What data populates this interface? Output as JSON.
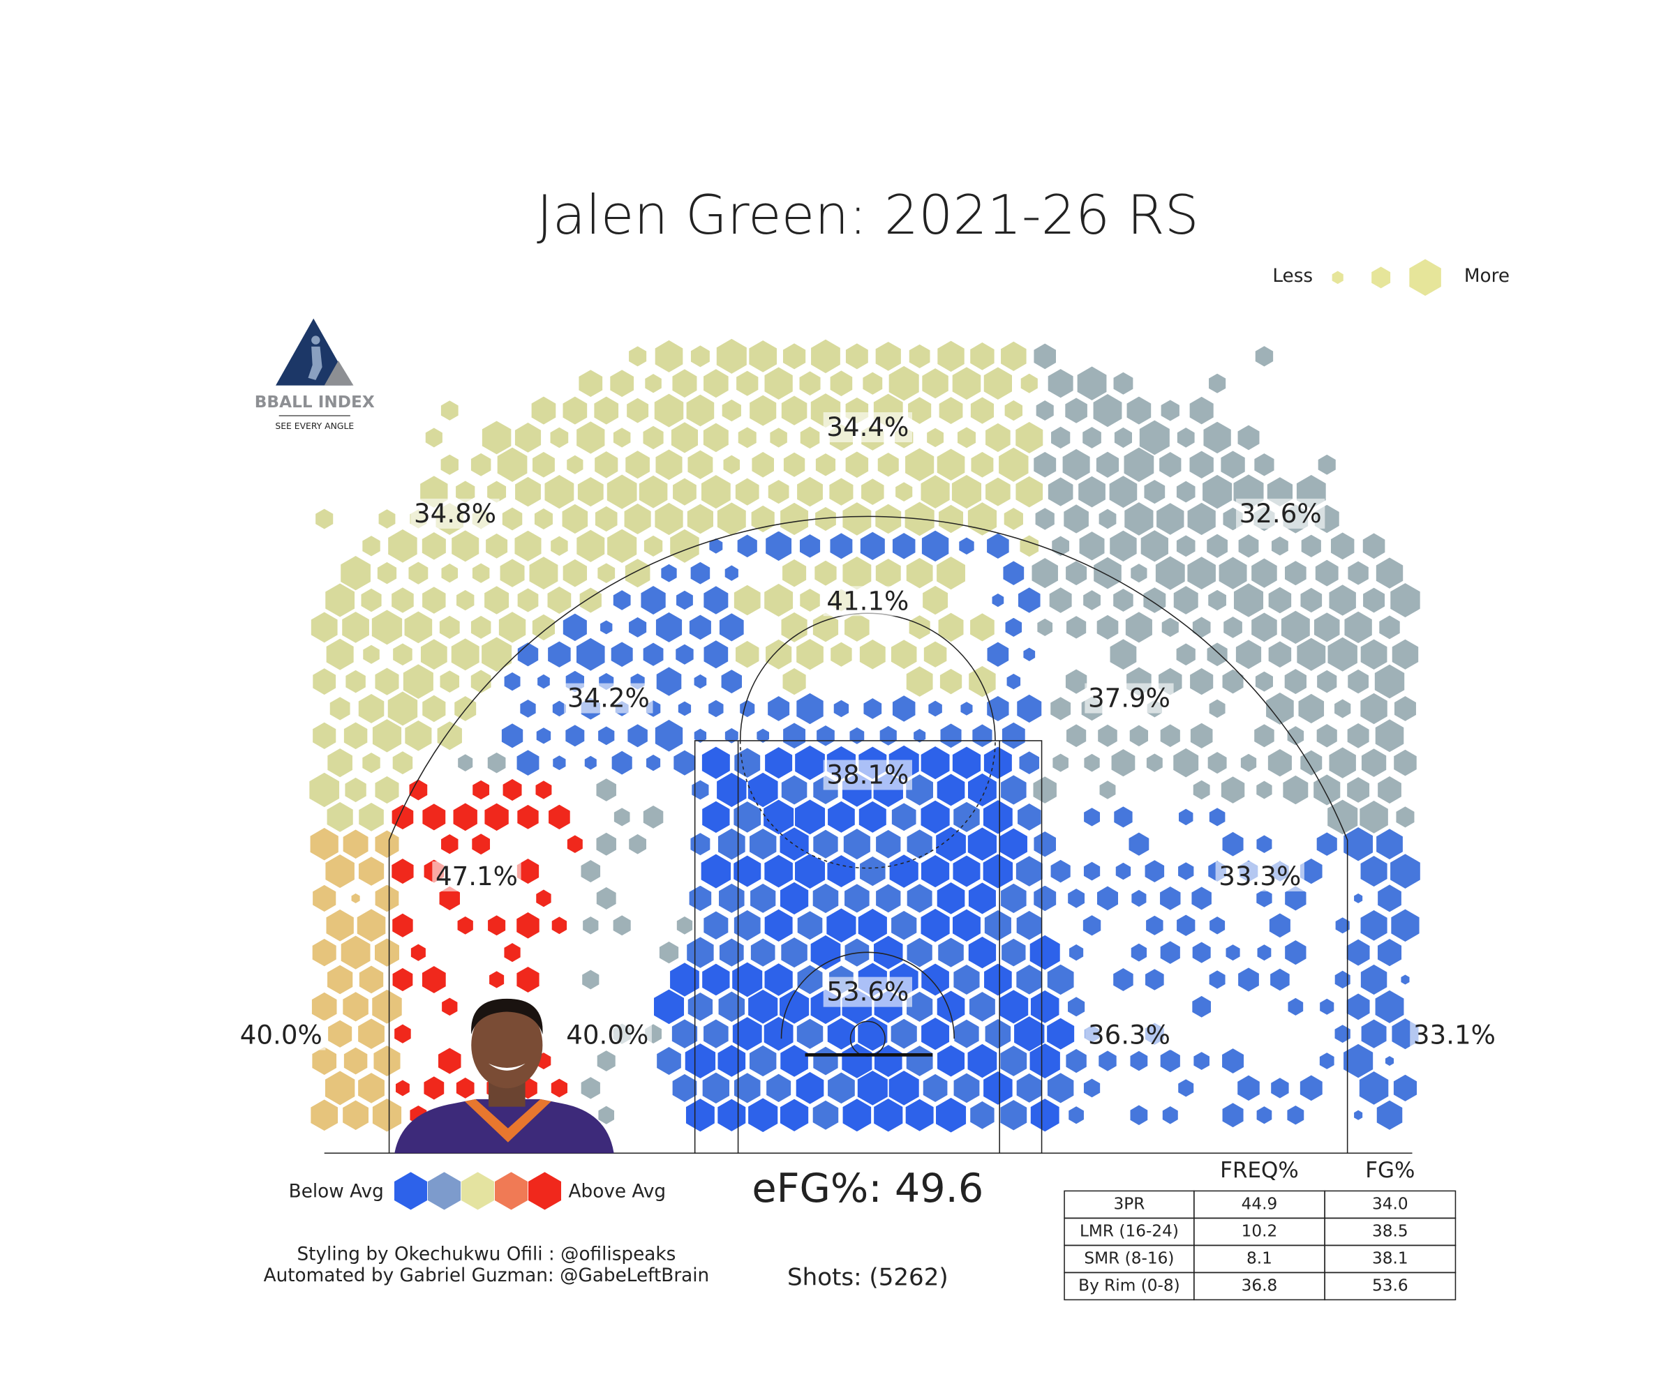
{
  "title": "Jalen Green: 2021-26 RS",
  "size_legend": {
    "less": "Less",
    "more": "More"
  },
  "logo": {
    "name": "BBALL INDEX",
    "tagline": "SEE EVERY ANGLE"
  },
  "zones": [
    {
      "label": "34.4%"
    },
    {
      "label": "34.8%"
    },
    {
      "label": "32.6%"
    },
    {
      "label": "41.1%"
    },
    {
      "label": "34.2%"
    },
    {
      "label": "37.9%"
    },
    {
      "label": "38.1%"
    },
    {
      "label": "47.1%"
    },
    {
      "label": "33.3%"
    },
    {
      "label": "53.6%"
    },
    {
      "label": "40.0%"
    },
    {
      "label": "40.0%"
    },
    {
      "label": "36.3%"
    },
    {
      "label": "33.1%"
    }
  ],
  "color_legend": {
    "below": "Below Avg",
    "above": "Above Avg"
  },
  "efg": "eFG%: 49.6",
  "shots": "Shots: (5262)",
  "credits": [
    "Styling by Okechukwu Ofili : @ofilispeaks",
    "Automated by Gabriel Guzman: @GabeLeftBrain"
  ],
  "table": {
    "columns": [
      "FREQ%",
      "FG%"
    ],
    "rows": [
      [
        "3PR",
        "44.9",
        "34.0"
      ],
      [
        "LMR (16-24)",
        "10.2",
        "38.5"
      ],
      [
        "SMR (8-16)",
        "8.1",
        "38.1"
      ],
      [
        "By Rim (0-8)",
        "36.8",
        "53.6"
      ]
    ]
  }
}
